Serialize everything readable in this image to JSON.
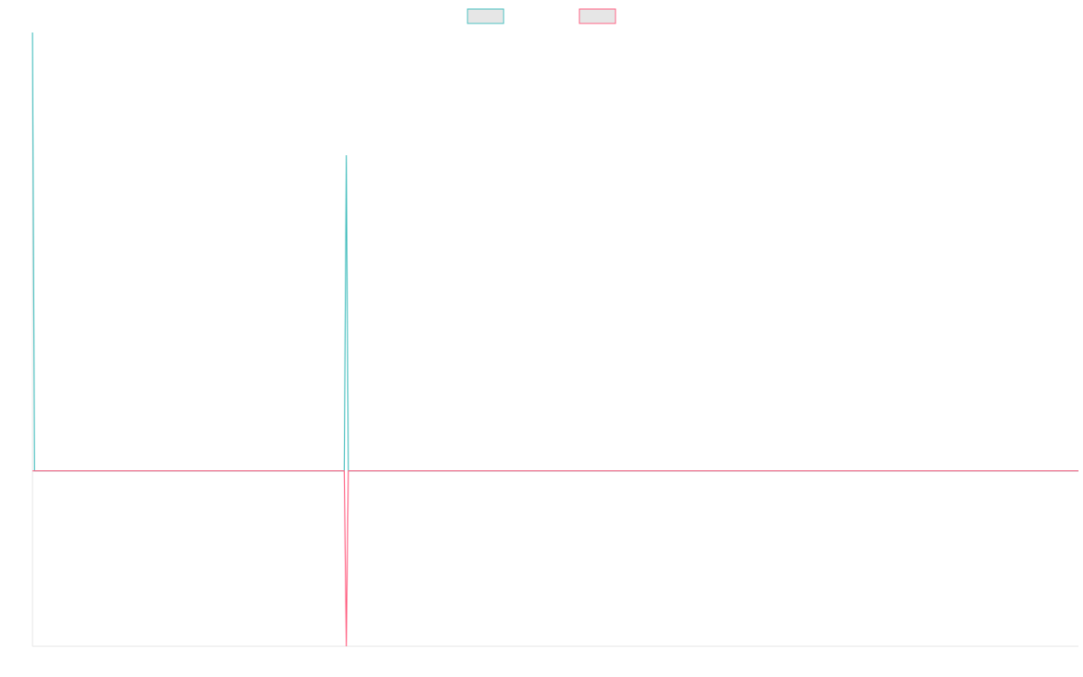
{
  "chart_data": {
    "type": "line",
    "title": "",
    "xlabel": "",
    "ylabel": "",
    "legend": {
      "placement": "top",
      "show_labels": false
    },
    "grid": false,
    "xlim": [
      0,
      100
    ],
    "ylim": [
      -1,
      2.5
    ],
    "x": [
      0,
      0.2,
      30,
      29.8,
      30.2,
      100
    ],
    "series": [
      {
        "color": "#4bc0c0",
        "points": [
          [
            0,
            2.5
          ],
          [
            0.2,
            0
          ],
          [
            29.8,
            0
          ],
          [
            30,
            1.8
          ],
          [
            30.2,
            0
          ],
          [
            100,
            0
          ]
        ]
      },
      {
        "color": "#ff6384",
        "points": [
          [
            0,
            0
          ],
          [
            29.8,
            0
          ],
          [
            30,
            -1
          ],
          [
            30.2,
            0
          ],
          [
            100,
            0
          ]
        ]
      }
    ]
  },
  "colors": {
    "series_1": "#4bc0c0",
    "series_2": "#ff6384",
    "legend_fill": "#e6e6e6",
    "axis": "#e5e5e5"
  }
}
